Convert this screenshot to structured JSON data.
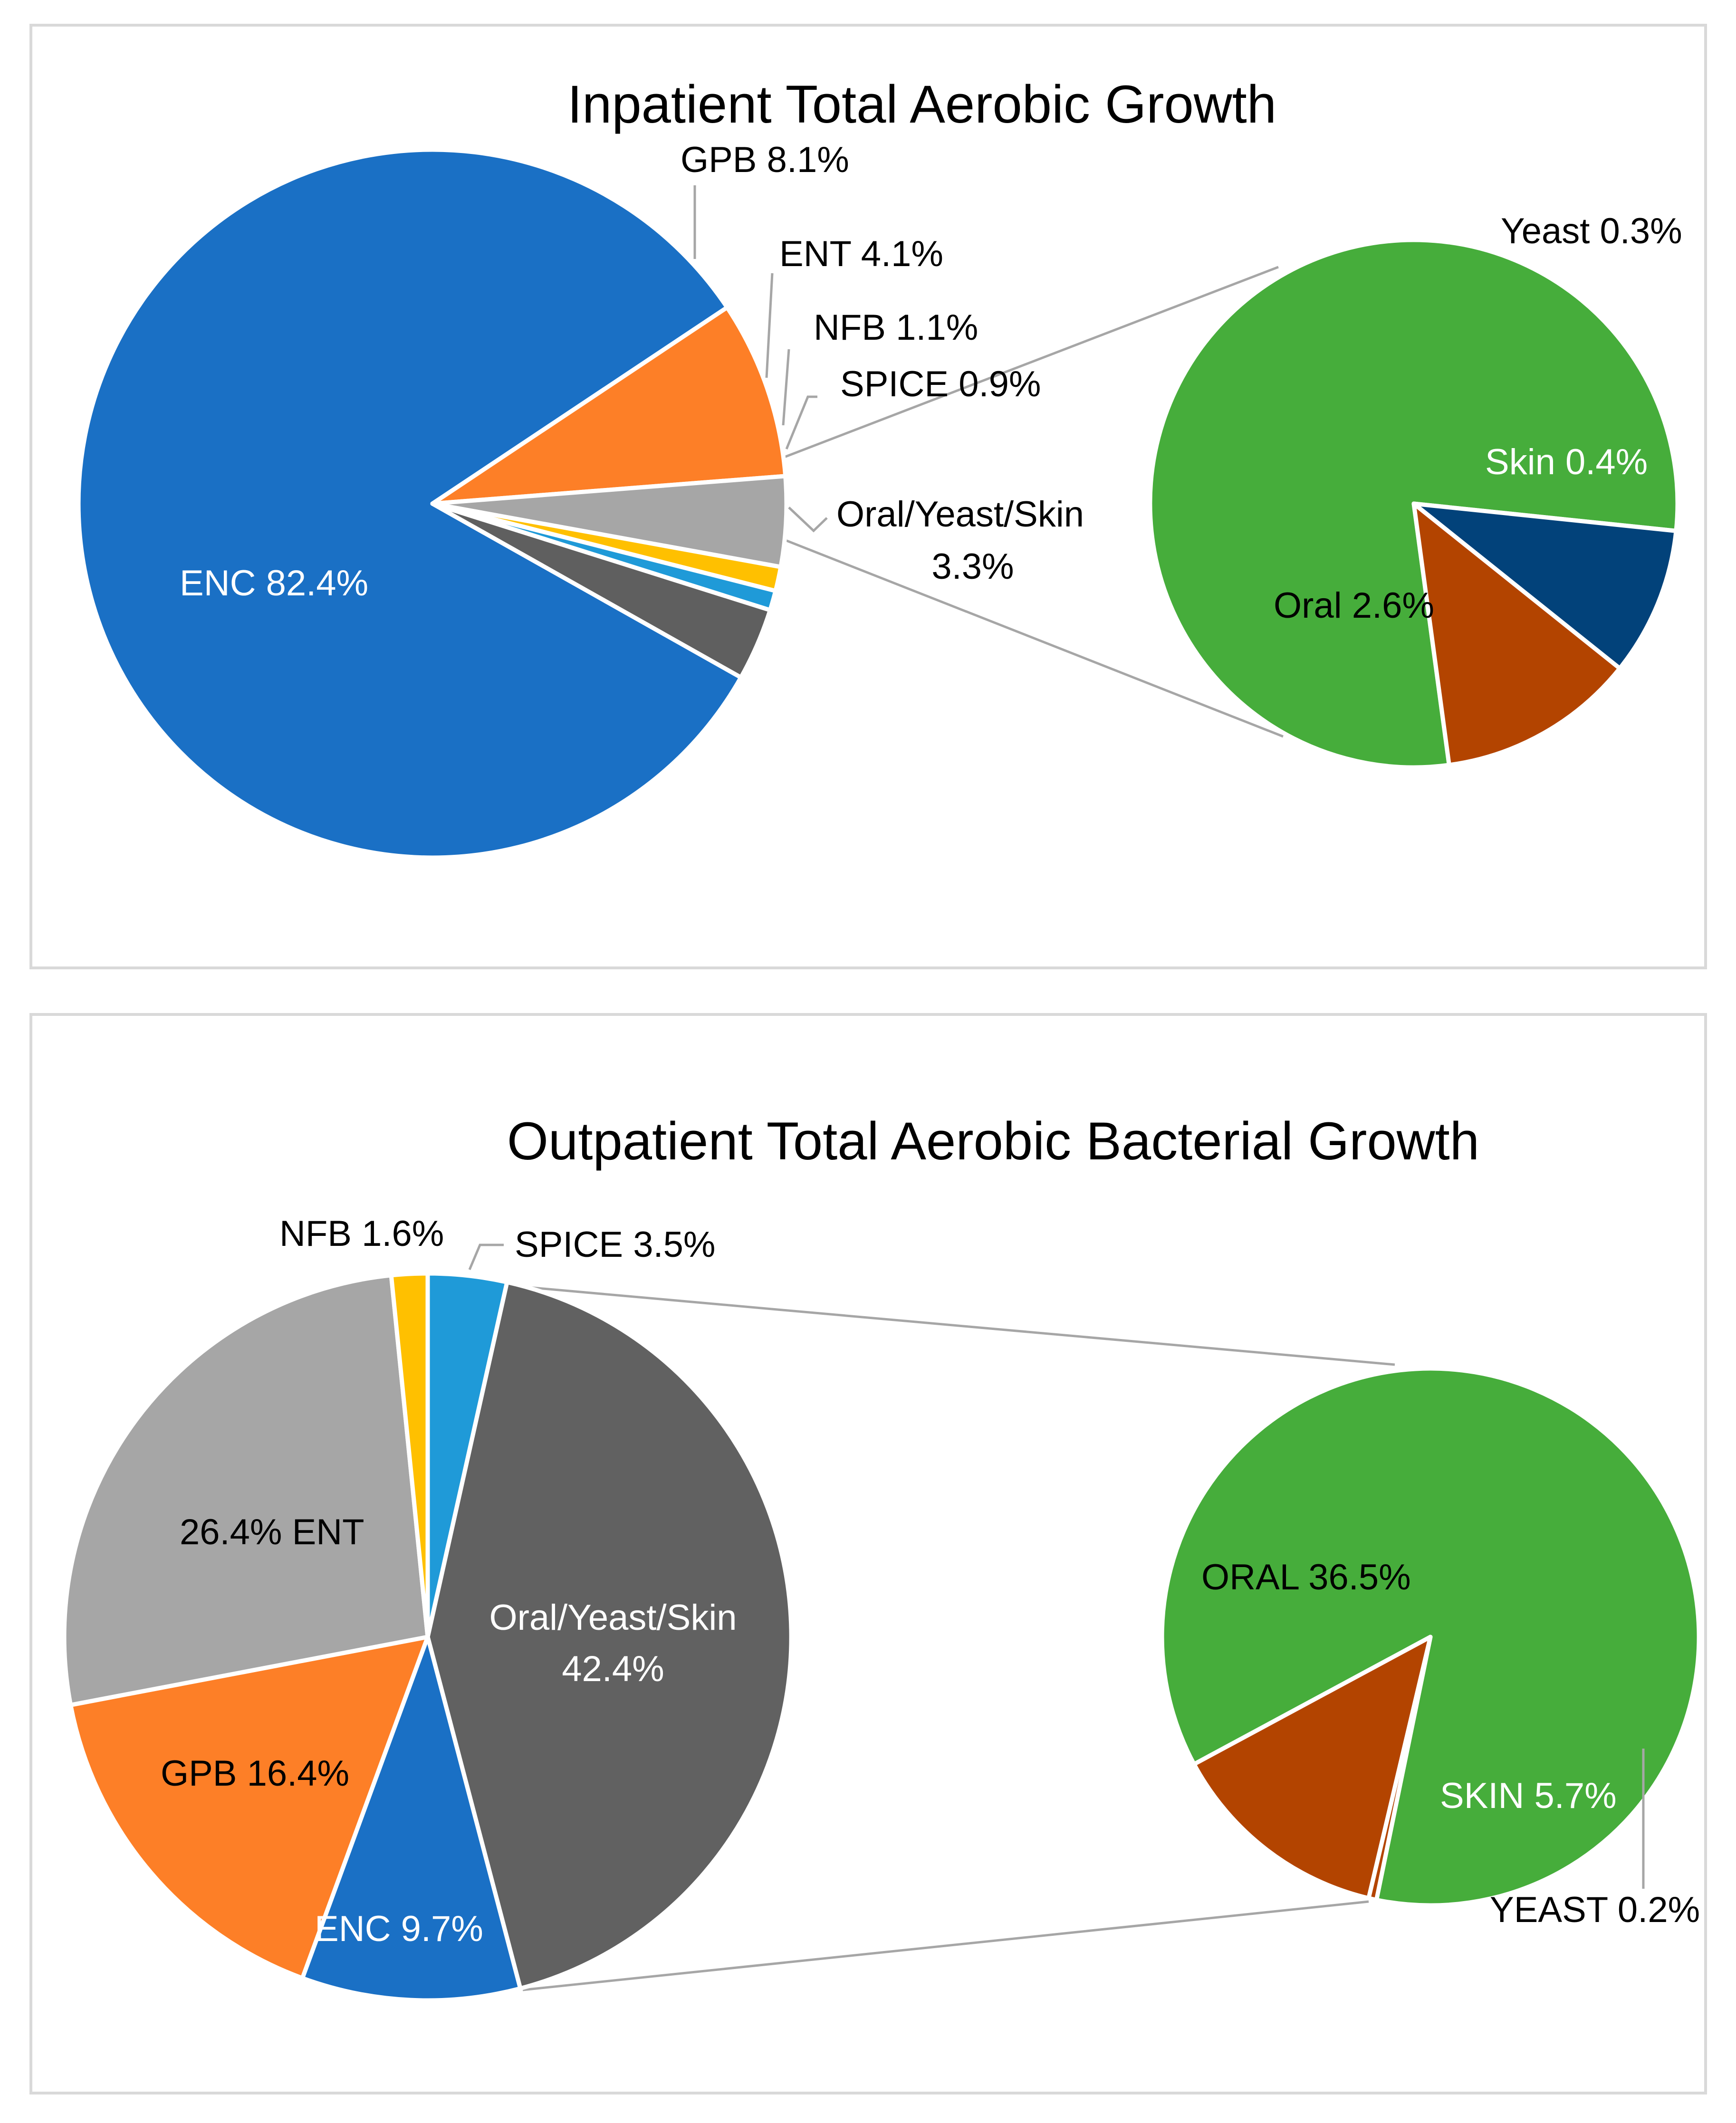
{
  "chart_data": [
    {
      "type": "pie",
      "title": "Inpatient Total Aerobic Growth",
      "main_pie": {
        "slices": [
          {
            "label": "ENC 82.4%",
            "name": "ENC",
            "value": 82.4,
            "color": "#1a70c5"
          },
          {
            "label": "GPB 8.1%",
            "name": "GPB",
            "value": 8.1,
            "color": "#fd7f27"
          },
          {
            "label": "ENT 4.1%",
            "name": "ENT",
            "value": 4.1,
            "color": "#a6a6a6"
          },
          {
            "label": "NFB 1.1%",
            "name": "NFB",
            "value": 1.1,
            "color": "#ffc000"
          },
          {
            "label": "SPICE 0.9%",
            "name": "SPICE",
            "value": 0.9,
            "color": "#1f9ad8"
          },
          {
            "label": "Oral/Yeast/Skin",
            "label2": "3.3%",
            "name": "Oral/Yeast/Skin",
            "value": 3.3,
            "color": "#5f5f5f"
          }
        ]
      },
      "sub_pie": {
        "slices": [
          {
            "label": "Oral 2.6%",
            "name": "Oral",
            "value": 2.6,
            "color": "#46ad3b"
          },
          {
            "label": "Yeast 0.3%",
            "name": "Yeast",
            "value": 0.3,
            "color": "#02427a"
          },
          {
            "label": "Skin 0.4%",
            "name": "Skin",
            "value": 0.4,
            "color": "#b34400"
          }
        ]
      }
    },
    {
      "type": "pie",
      "title": "Outpatient Total Aerobic Bacterial Growth",
      "main_pie": {
        "slices": [
          {
            "label": "Oral/Yeast/Skin",
            "label2": "42.4%",
            "name": "Oral/Yeast/Skin",
            "value": 42.4,
            "color": "#616161"
          },
          {
            "label": "ENC 9.7%",
            "name": "ENC",
            "value": 9.7,
            "color": "#1a70c5"
          },
          {
            "label": "GPB 16.4%",
            "name": "GPB",
            "value": 16.4,
            "color": "#fd7f27"
          },
          {
            "label": "26.4% ENT",
            "name": "ENT",
            "value": 26.4,
            "color": "#a6a6a6"
          },
          {
            "label": "NFB 1.6%",
            "name": "NFB",
            "value": 1.6,
            "color": "#ffc000"
          },
          {
            "label": "SPICE 3.5%",
            "name": "SPICE",
            "value": 3.5,
            "color": "#1f9ad8"
          }
        ]
      },
      "sub_pie": {
        "slices": [
          {
            "label": "ORAL 36.5%",
            "name": "ORAL",
            "value": 36.5,
            "color": "#46ad3b"
          },
          {
            "label": "SKIN 5.7%",
            "name": "SKIN",
            "value": 5.7,
            "color": "#b34400"
          },
          {
            "label": "YEAST 0.2%",
            "name": "YEAST",
            "value": 0.2,
            "color": "#b34400"
          }
        ]
      }
    }
  ]
}
